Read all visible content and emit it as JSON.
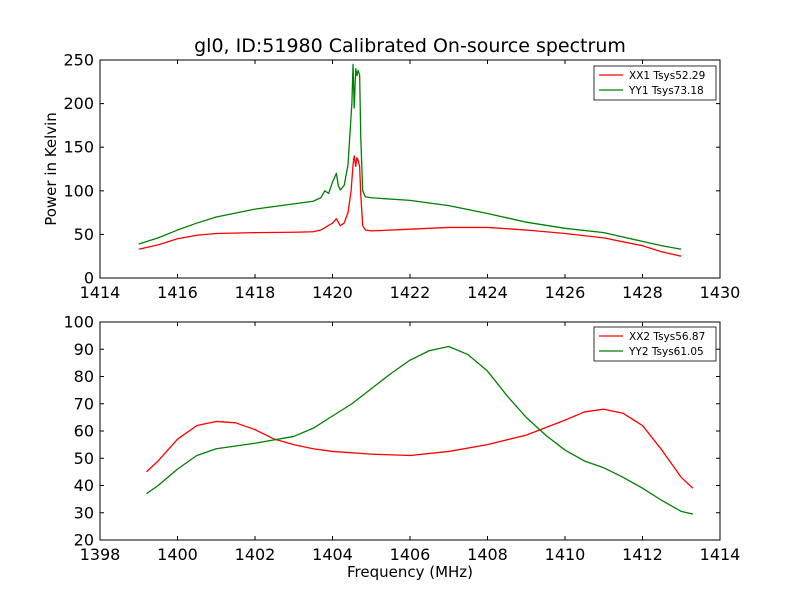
{
  "title": "gl0, ID:51980 Calibrated On-source spectrum",
  "chart_data": [
    {
      "type": "line",
      "title": "gl0, ID:51980 Calibrated On-source spectrum",
      "xlabel": "",
      "ylabel": "Power in Kelvin",
      "xlim": [
        1414,
        1430
      ],
      "ylim": [
        0,
        250
      ],
      "xticks": [
        1414,
        1416,
        1418,
        1420,
        1422,
        1424,
        1426,
        1428,
        1430
      ],
      "yticks": [
        0,
        50,
        100,
        150,
        200,
        250
      ],
      "grid": false,
      "legend_position": "top-right",
      "series": [
        {
          "name": "XX1 Tsys52.29",
          "color": "#ff0000",
          "points": [
            [
              1415.0,
              33
            ],
            [
              1415.5,
              38
            ],
            [
              1416.0,
              45
            ],
            [
              1416.5,
              49
            ],
            [
              1417.0,
              51
            ],
            [
              1418.0,
              52
            ],
            [
              1419.0,
              52.5
            ],
            [
              1419.5,
              53
            ],
            [
              1419.7,
              55
            ],
            [
              1419.85,
              59
            ],
            [
              1420.0,
              63
            ],
            [
              1420.1,
              68
            ],
            [
              1420.2,
              60
            ],
            [
              1420.3,
              63
            ],
            [
              1420.4,
              75
            ],
            [
              1420.48,
              100
            ],
            [
              1420.53,
              130
            ],
            [
              1420.56,
              140
            ],
            [
              1420.6,
              128
            ],
            [
              1420.63,
              138
            ],
            [
              1420.66,
              135
            ],
            [
              1420.7,
              128
            ],
            [
              1420.73,
              95
            ],
            [
              1420.78,
              60
            ],
            [
              1420.85,
              55
            ],
            [
              1421.0,
              54
            ],
            [
              1422.0,
              56
            ],
            [
              1423.0,
              58
            ],
            [
              1424.0,
              58
            ],
            [
              1425.0,
              55
            ],
            [
              1426.0,
              51
            ],
            [
              1427.0,
              46
            ],
            [
              1428.0,
              37
            ],
            [
              1428.5,
              30
            ],
            [
              1429.0,
              25
            ]
          ]
        },
        {
          "name": "YY1 Tsys73.18",
          "color": "#008000",
          "points": [
            [
              1415.0,
              39
            ],
            [
              1415.5,
              46
            ],
            [
              1416.0,
              55
            ],
            [
              1416.5,
              63
            ],
            [
              1417.0,
              70
            ],
            [
              1418.0,
              79
            ],
            [
              1419.0,
              85
            ],
            [
              1419.5,
              88
            ],
            [
              1419.7,
              92
            ],
            [
              1419.8,
              100
            ],
            [
              1419.9,
              97
            ],
            [
              1420.0,
              110
            ],
            [
              1420.1,
              120
            ],
            [
              1420.15,
              106
            ],
            [
              1420.2,
              101
            ],
            [
              1420.3,
              106
            ],
            [
              1420.4,
              130
            ],
            [
              1420.45,
              165
            ],
            [
              1420.5,
              200
            ],
            [
              1420.53,
              245
            ],
            [
              1420.56,
              195
            ],
            [
              1420.6,
              240
            ],
            [
              1420.63,
              232
            ],
            [
              1420.66,
              238
            ],
            [
              1420.7,
              233
            ],
            [
              1420.73,
              160
            ],
            [
              1420.78,
              100
            ],
            [
              1420.85,
              93
            ],
            [
              1421.0,
              92
            ],
            [
              1422.0,
              89
            ],
            [
              1423.0,
              83
            ],
            [
              1424.0,
              74
            ],
            [
              1425.0,
              64
            ],
            [
              1426.0,
              57
            ],
            [
              1427.0,
              52
            ],
            [
              1428.0,
              42
            ],
            [
              1428.5,
              37
            ],
            [
              1429.0,
              33
            ]
          ]
        }
      ]
    },
    {
      "type": "line",
      "title": "",
      "xlabel": "Frequency (MHz)",
      "ylabel": "",
      "xlim": [
        1398,
        1414
      ],
      "ylim": [
        20,
        100
      ],
      "xticks": [
        1398,
        1400,
        1402,
        1404,
        1406,
        1408,
        1410,
        1412,
        1414
      ],
      "yticks": [
        20,
        30,
        40,
        50,
        60,
        70,
        80,
        90,
        100
      ],
      "grid": false,
      "legend_position": "top-right",
      "series": [
        {
          "name": "XX2 Tsys56.87",
          "color": "#ff0000",
          "points": [
            [
              1399.2,
              45
            ],
            [
              1399.5,
              49
            ],
            [
              1400.0,
              57
            ],
            [
              1400.5,
              62
            ],
            [
              1401.0,
              63.5
            ],
            [
              1401.5,
              63
            ],
            [
              1402.0,
              60.5
            ],
            [
              1402.5,
              57
            ],
            [
              1403.0,
              55
            ],
            [
              1403.5,
              53.5
            ],
            [
              1404.0,
              52.5
            ],
            [
              1405.0,
              51.5
            ],
            [
              1406.0,
              51
            ],
            [
              1407.0,
              52.5
            ],
            [
              1408.0,
              55
            ],
            [
              1409.0,
              58.5
            ],
            [
              1410.0,
              64
            ],
            [
              1410.5,
              67
            ],
            [
              1411.0,
              68
            ],
            [
              1411.5,
              66.5
            ],
            [
              1412.0,
              62
            ],
            [
              1412.5,
              53
            ],
            [
              1413.0,
              43
            ],
            [
              1413.3,
              39
            ]
          ]
        },
        {
          "name": "YY2 Tsys61.05",
          "color": "#008000",
          "points": [
            [
              1399.2,
              37
            ],
            [
              1399.5,
              40
            ],
            [
              1400.0,
              46
            ],
            [
              1400.5,
              51
            ],
            [
              1401.0,
              53.5
            ],
            [
              1401.5,
              54.5
            ],
            [
              1402.0,
              55.5
            ],
            [
              1403.0,
              58
            ],
            [
              1403.5,
              61
            ],
            [
              1404.0,
              65.5
            ],
            [
              1404.5,
              70
            ],
            [
              1405.0,
              75.5
            ],
            [
              1405.5,
              81
            ],
            [
              1406.0,
              86
            ],
            [
              1406.5,
              89.5
            ],
            [
              1407.0,
              91
            ],
            [
              1407.5,
              88
            ],
            [
              1408.0,
              82
            ],
            [
              1408.5,
              73
            ],
            [
              1409.0,
              65
            ],
            [
              1409.5,
              58.5
            ],
            [
              1410.0,
              53
            ],
            [
              1410.5,
              49
            ],
            [
              1411.0,
              46.5
            ],
            [
              1411.5,
              43
            ],
            [
              1412.0,
              39
            ],
            [
              1412.5,
              34.5
            ],
            [
              1413.0,
              30.5
            ],
            [
              1413.3,
              29.5
            ]
          ]
        }
      ]
    }
  ]
}
